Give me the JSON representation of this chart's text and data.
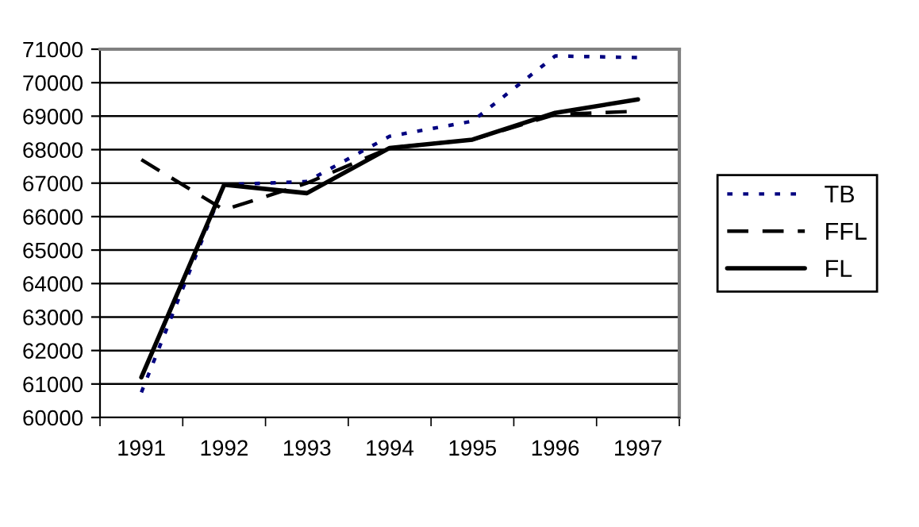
{
  "chart_data": {
    "type": "line",
    "categories": [
      "1991",
      "1992",
      "1993",
      "1994",
      "1995",
      "1996",
      "1997"
    ],
    "series": [
      {
        "name": "TB",
        "color": "#000080",
        "line_style": "dotted",
        "values": [
          60750,
          66950,
          67050,
          68400,
          68850,
          70800,
          70750
        ]
      },
      {
        "name": "FFL",
        "color": "#000000",
        "line_style": "dashed",
        "values": [
          67700,
          66200,
          67000,
          68050,
          68300,
          69050,
          69150
        ]
      },
      {
        "name": "FL",
        "color": "#000000",
        "line_style": "solid",
        "values": [
          61200,
          66950,
          66700,
          68050,
          68300,
          69100,
          69500
        ]
      }
    ],
    "ylim": [
      60000,
      71000
    ],
    "yticks": [
      60000,
      61000,
      62000,
      63000,
      64000,
      65000,
      66000,
      67000,
      68000,
      69000,
      70000,
      71000
    ],
    "grid": "y",
    "legend": "right",
    "marker": "none"
  }
}
